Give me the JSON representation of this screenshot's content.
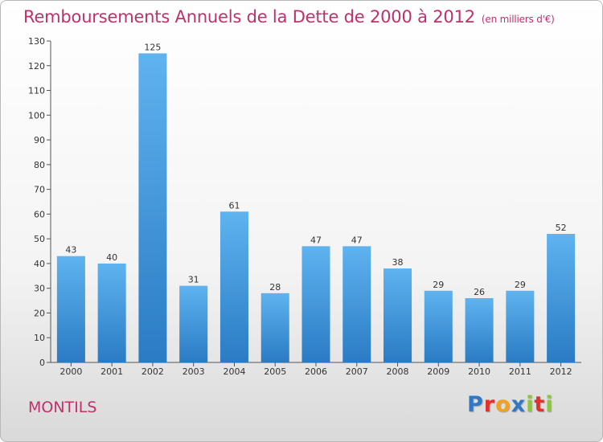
{
  "title": "Remboursements Annuels de la Dette de 2000 à 2012",
  "unit": "(en milliers d'€)",
  "commune": "MONTILS",
  "brand": {
    "letters": [
      {
        "ch": "P",
        "color": "#2f79c4"
      },
      {
        "ch": "r",
        "color": "#e3312b"
      },
      {
        "ch": "o",
        "color": "#f3a31b"
      },
      {
        "ch": "x",
        "color": "#2f79c4"
      },
      {
        "ch": "i",
        "color": "#8cc63f"
      },
      {
        "ch": "t",
        "color": "#e3312b"
      },
      {
        "ch": "i",
        "color": "#8cc63f"
      }
    ]
  },
  "chart_data": {
    "type": "bar",
    "categories": [
      "2000",
      "2001",
      "2002",
      "2003",
      "2004",
      "2005",
      "2006",
      "2007",
      "2008",
      "2009",
      "2010",
      "2011",
      "2012"
    ],
    "values": [
      43,
      40,
      125,
      31,
      61,
      28,
      47,
      47,
      38,
      29,
      26,
      29,
      52
    ],
    "ylim": [
      0,
      130
    ],
    "yticks": [
      0,
      10,
      20,
      30,
      40,
      50,
      60,
      70,
      80,
      90,
      100,
      110,
      120,
      130
    ],
    "grid": false,
    "bar_color": "#4a9ee0"
  }
}
